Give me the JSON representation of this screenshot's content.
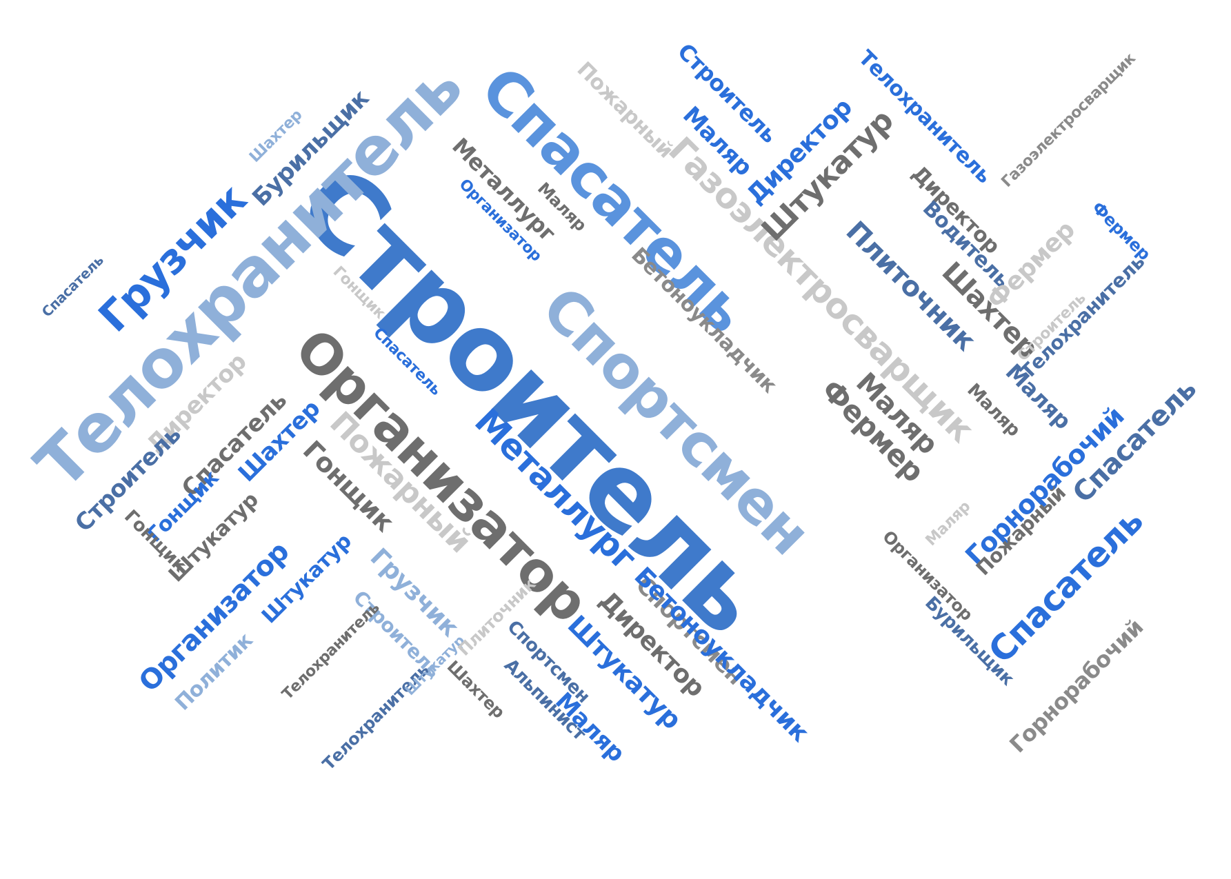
{
  "colors": {
    "background": "#ffffff",
    "dark_gray": "#6e6e6e",
    "mid_gray": "#8a8a8a",
    "light_gray": "#c8c8c8",
    "pale_blue": "#8fb0d9",
    "mid_blue": "#3f7acb",
    "bright_blue": "#2a6fdb",
    "steel_blue": "#4a6fa5"
  },
  "words": [
    {
      "text": "Строитель",
      "color": "#3f7acb"
    },
    {
      "text": "Телохранитель",
      "color": "#8fb0d9"
    },
    {
      "text": "Спасатель",
      "color": "#5a93dd"
    },
    {
      "text": "Спортсмен",
      "color": "#8fb0d9"
    },
    {
      "text": "Организатор",
      "color": "#6e6e6e"
    },
    {
      "text": "Газоэлектросварщик",
      "color": "#c8c8c8"
    },
    {
      "text": "Грузчик",
      "color": "#2a6fdb"
    },
    {
      "text": "Бурильщик",
      "color": "#4a6fa5"
    },
    {
      "text": "Шахтер",
      "color": "#8fb0d9"
    },
    {
      "text": "Спасатель",
      "color": "#4a6fa5"
    },
    {
      "text": "Металлург",
      "color": "#6e6e6e"
    },
    {
      "text": "Маляр",
      "color": "#6e6e6e"
    },
    {
      "text": "Организатор",
      "color": "#2a6fdb"
    },
    {
      "text": "Пожарный",
      "color": "#c8c8c8"
    },
    {
      "text": "Строитель",
      "color": "#2a6fdb"
    },
    {
      "text": "Маляр",
      "color": "#2a6fdb"
    },
    {
      "text": "Директор",
      "color": "#2a6fdb"
    },
    {
      "text": "Штукатур",
      "color": "#6e6e6e"
    },
    {
      "text": "Телохранитель",
      "color": "#2a6fdb"
    },
    {
      "text": "Газоэлектросварщик",
      "color": "#8a8a8a"
    },
    {
      "text": "Директор",
      "color": "#6e6e6e"
    },
    {
      "text": "Водитель",
      "color": "#4a6fa5"
    },
    {
      "text": "Плиточник",
      "color": "#4a6fa5"
    },
    {
      "text": "Шахтер",
      "color": "#6e6e6e"
    },
    {
      "text": "Фермер",
      "color": "#c8c8c8"
    },
    {
      "text": "Фермер",
      "color": "#2a6fdb"
    },
    {
      "text": "Строитель",
      "color": "#c8c8c8"
    },
    {
      "text": "Телохранитель",
      "color": "#4a6fa5"
    },
    {
      "text": "Маляр",
      "color": "#4a6fa5"
    },
    {
      "text": "Бетоноукладчик",
      "color": "#8a8a8a"
    },
    {
      "text": "Гонщик",
      "color": "#c8c8c8"
    },
    {
      "text": "Спасатель",
      "color": "#2a6fdb"
    },
    {
      "text": "Директор",
      "color": "#c8c8c8"
    },
    {
      "text": "Спасатель",
      "color": "#6e6e6e"
    },
    {
      "text": "Шахтер",
      "color": "#2a6fdb"
    },
    {
      "text": "Металлург",
      "color": "#2a6fdb"
    },
    {
      "text": "Пожарный",
      "color": "#c8c8c8"
    },
    {
      "text": "Фермер",
      "color": "#6e6e6e"
    },
    {
      "text": "Маляр",
      "color": "#6e6e6e"
    },
    {
      "text": "Маляр",
      "color": "#6e6e6e"
    },
    {
      "text": "Горнорабочий",
      "color": "#2a6fdb"
    },
    {
      "text": "Спасатель",
      "color": "#4a6fa5"
    },
    {
      "text": "Строитель",
      "color": "#4a6fa5"
    },
    {
      "text": "Гонщик",
      "color": "#2a6fdb"
    },
    {
      "text": "Гонщик",
      "color": "#6e6e6e"
    },
    {
      "text": "Штукатур",
      "color": "#6e6e6e"
    },
    {
      "text": "Гонщик",
      "color": "#6e6e6e"
    },
    {
      "text": "Организатор",
      "color": "#2a6fdb"
    },
    {
      "text": "Грузчик",
      "color": "#8fb0d9"
    },
    {
      "text": "Штукатур",
      "color": "#2a6fdb"
    },
    {
      "text": "Строитель",
      "color": "#8fb0d9"
    },
    {
      "text": "Политик",
      "color": "#8fb0d9"
    },
    {
      "text": "Телохранитель",
      "color": "#6e6e6e"
    },
    {
      "text": "Телохранитель",
      "color": "#4a6fa5"
    },
    {
      "text": "Штукатур",
      "color": "#8fb0d9"
    },
    {
      "text": "Шахтер",
      "color": "#6e6e6e"
    },
    {
      "text": "Альпинист",
      "color": "#4a6fa5"
    },
    {
      "text": "Спортсмен",
      "color": "#4a6fa5"
    },
    {
      "text": "Плиточник",
      "color": "#c8c8c8"
    },
    {
      "text": "Штукатур",
      "color": "#2a6fdb"
    },
    {
      "text": "Маляр",
      "color": "#2a6fdb"
    },
    {
      "text": "Директор",
      "color": "#6e6e6e"
    },
    {
      "text": "Спортсмен",
      "color": "#8a8a8a"
    },
    {
      "text": "Бетоноукладчик",
      "color": "#2a6fdb"
    },
    {
      "text": "Маляр",
      "color": "#c8c8c8"
    },
    {
      "text": "Организатор",
      "color": "#6e6e6e"
    },
    {
      "text": "Бурильщик",
      "color": "#4a6fa5"
    },
    {
      "text": "Спасатель",
      "color": "#2a6fdb"
    },
    {
      "text": "Пожарный",
      "color": "#6e6e6e"
    },
    {
      "text": "Горнорабочий",
      "color": "#8a8a8a"
    }
  ]
}
